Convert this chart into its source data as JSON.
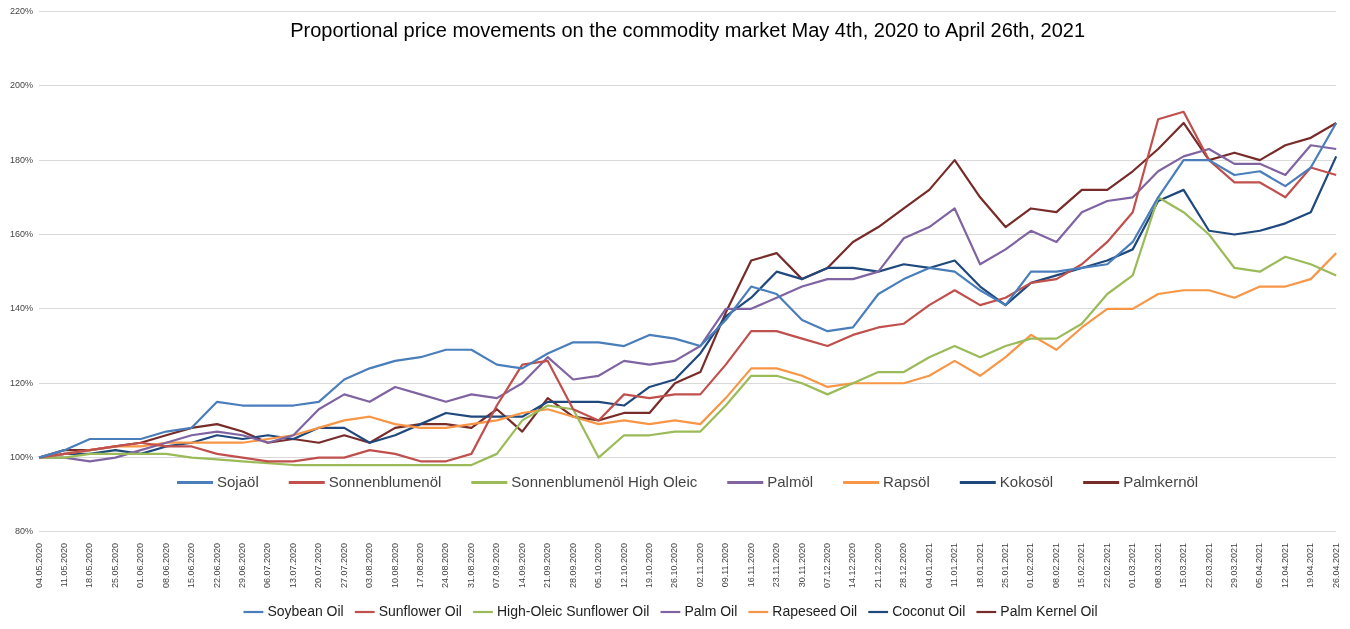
{
  "chart_data": {
    "type": "line",
    "title": "Proportional price movements on the commodity market May 4th, 2020 to April 26th, 2021",
    "categories": [
      "04.05.2020",
      "11.05.2020",
      "18.05.2020",
      "25.05.2020",
      "01.06.2020",
      "08.06.2020",
      "15.06.2020",
      "22.06.2020",
      "29.06.2020",
      "06.07.2020",
      "13.07.2020",
      "20.07.2020",
      "27.07.2020",
      "03.08.2020",
      "10.08.2020",
      "17.08.2020",
      "24.08.2020",
      "31.08.2020",
      "07.09.2020",
      "14.09.2020",
      "21.09.2020",
      "28.09.2020",
      "05.10.2020",
      "12.10.2020",
      "19.10.2020",
      "26.10.2020",
      "02.11.2020",
      "09.11.2020",
      "16.11.2020",
      "23.11.2020",
      "30.11.2020",
      "07.12.2020",
      "14.12.2020",
      "21.12.2020",
      "28.12.2020",
      "04.01.2021",
      "11.01.2021",
      "18.01.2021",
      "25.01.2021",
      "01.02.2021",
      "08.02.2021",
      "15.02.2021",
      "22.02.2021",
      "01.03.2021",
      "08.03.2021",
      "15.03.2021",
      "22.03.2021",
      "29.03.2021",
      "05.04.2021",
      "12.04.2021",
      "19.04.2021",
      "26.04.2021"
    ],
    "series": [
      {
        "name": "Soybean Oil",
        "color": "#4a7ebb",
        "values": [
          100,
          102,
          105,
          105,
          105,
          107,
          108,
          115,
          114,
          114,
          114,
          115,
          121,
          124,
          126,
          127,
          129,
          129,
          125,
          124,
          128,
          131,
          131,
          130,
          133,
          132,
          130,
          137,
          146,
          144,
          137,
          134,
          135,
          144,
          148,
          151,
          150,
          145,
          141,
          150,
          150,
          151,
          152,
          158,
          170,
          180,
          180,
          176,
          177,
          173,
          178,
          190
        ]
      },
      {
        "name": "Sunflower Oil",
        "color": "#c0504d",
        "values": [
          100,
          101,
          102,
          103,
          104,
          103,
          103,
          101,
          100,
          99,
          99,
          100,
          100,
          102,
          101,
          99,
          99,
          101,
          114,
          125,
          126,
          113,
          110,
          117,
          116,
          117,
          117,
          125,
          134,
          134,
          132,
          130,
          133,
          135,
          136,
          141,
          145,
          141,
          143,
          147,
          148,
          152,
          158,
          166,
          191,
          193,
          180,
          174,
          174,
          170,
          178,
          176
        ]
      },
      {
        "name": "High-Oleic Sunflower Oil",
        "color": "#9bbb59",
        "values": [
          100,
          100,
          101,
          101,
          101,
          101,
          100,
          99.5,
          99,
          98.5,
          98,
          98,
          98,
          98,
          98,
          98,
          98,
          98,
          101,
          110,
          114,
          113,
          100,
          106,
          106,
          107,
          107,
          114,
          122,
          122,
          120,
          117,
          120,
          123,
          123,
          127,
          130,
          127,
          130,
          132,
          132,
          136,
          144,
          149,
          170,
          166,
          160,
          151,
          150,
          154,
          152,
          149
        ]
      },
      {
        "name": "Palm Oil",
        "color": "#8064a2",
        "values": [
          100,
          100,
          99,
          100,
          102,
          104,
          106,
          107,
          106,
          104,
          106,
          113,
          117,
          115,
          119,
          117,
          115,
          117,
          116,
          120,
          127,
          121,
          122,
          126,
          125,
          126,
          130,
          140,
          140,
          143,
          146,
          148,
          148,
          150,
          159,
          162,
          167,
          152,
          156,
          161,
          158,
          166,
          169,
          170,
          177,
          181,
          183,
          179,
          179,
          176,
          184,
          183
        ]
      },
      {
        "name": "Rapeseed Oil",
        "color": "#f79646",
        "values": [
          100,
          101,
          102,
          103,
          103,
          104,
          104,
          104,
          104,
          105,
          106,
          108,
          110,
          111,
          109,
          108,
          108,
          109,
          110,
          112,
          113,
          111,
          109,
          110,
          109,
          110,
          109,
          116,
          124,
          124,
          122,
          119,
          120,
          120,
          120,
          122,
          126,
          122,
          127,
          133,
          129,
          135,
          140,
          140,
          144,
          145,
          145,
          143,
          146,
          146,
          148,
          155
        ]
      },
      {
        "name": "Coconut Oil",
        "color": "#1f497d",
        "values": [
          100,
          101,
          101,
          102,
          101,
          103,
          104,
          106,
          105,
          106,
          105,
          108,
          108,
          104,
          106,
          109,
          112,
          111,
          111,
          111,
          115,
          115,
          115,
          114,
          119,
          121,
          128,
          138,
          143,
          150,
          148,
          151,
          151,
          150,
          152,
          151,
          153,
          146,
          141,
          147,
          149,
          151,
          153,
          156,
          169,
          172,
          161,
          160,
          161,
          163,
          166,
          181
        ]
      },
      {
        "name": "Palm Kernel Oil",
        "color": "#772c2a",
        "values": [
          100,
          102,
          102,
          103,
          104,
          106,
          108,
          109,
          107,
          104,
          105,
          104,
          106,
          104,
          108,
          109,
          109,
          108,
          113,
          107,
          116,
          111,
          110,
          112,
          112,
          120,
          123,
          139,
          153,
          155,
          148,
          151,
          158,
          162,
          167,
          172,
          180,
          170,
          162,
          167,
          166,
          172,
          172,
          177,
          183,
          190,
          180,
          182,
          180,
          184,
          186,
          190
        ]
      }
    ],
    "ylim": [
      80,
      220
    ],
    "yticks": [
      {
        "value": 80,
        "label": "80%"
      },
      {
        "value": 100,
        "label": "100%"
      },
      {
        "value": 120,
        "label": "120%"
      },
      {
        "value": 140,
        "label": "140%"
      },
      {
        "value": 160,
        "label": "160%"
      },
      {
        "value": 180,
        "label": "180%"
      },
      {
        "value": 200,
        "label": "200%"
      },
      {
        "value": 220,
        "label": "220%"
      }
    ],
    "grid": "y",
    "legend": "bottom",
    "annotations": [
      "Sojaöl",
      "Sonnenblumenöl",
      "Sonnenblumenöl High Oleic",
      "Palmöl",
      "Rapsöl",
      "Kokosöl",
      "Palmkernöl"
    ]
  }
}
